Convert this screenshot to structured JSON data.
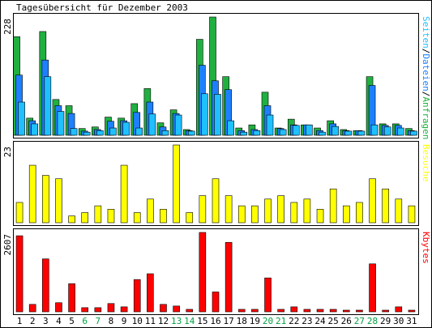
{
  "chart_data": [
    {
      "type": "bar-overlap",
      "title": "Tagesübersicht für Dezember 2003",
      "legend_separator": "/",
      "ylim": [
        0,
        228
      ],
      "yticks": [
        228
      ],
      "series": [
        {
          "name": "Anfragen",
          "color": "#20b040",
          "values": [
            190,
            33,
            200,
            69,
            57,
            13,
            16,
            35,
            33,
            61,
            90,
            24,
            49,
            11,
            185,
            228,
            113,
            14,
            20,
            83,
            14,
            31,
            20,
            14,
            28,
            11,
            9,
            113,
            22,
            22,
            13
          ]
        },
        {
          "name": "Dateien",
          "color": "#1e80ff",
          "values": [
            116,
            28,
            145,
            57,
            42,
            8,
            11,
            27,
            28,
            44,
            64,
            16,
            42,
            9,
            135,
            105,
            88,
            9,
            11,
            57,
            13,
            20,
            20,
            9,
            22,
            9,
            9,
            96,
            19,
            19,
            9
          ]
        },
        {
          "name": "Seiten",
          "color": "#20c0ff",
          "values": [
            64,
            22,
            113,
            46,
            13,
            6,
            9,
            14,
            25,
            14,
            41,
            9,
            39,
            8,
            80,
            79,
            28,
            6,
            9,
            39,
            11,
            19,
            20,
            6,
            17,
            8,
            8,
            20,
            16,
            14,
            8
          ]
        }
      ]
    },
    {
      "type": "bar",
      "y_label": "Besuche",
      "color": "#ffff00",
      "ylim": [
        0,
        23
      ],
      "yticks": [
        23
      ],
      "values": [
        6,
        17,
        14,
        13,
        2,
        3,
        5,
        4,
        17,
        3,
        7,
        4,
        23,
        3,
        8,
        13,
        8,
        5,
        5,
        7,
        8,
        6,
        7,
        4,
        10,
        5,
        6,
        13,
        10,
        7,
        5
      ]
    },
    {
      "type": "bar",
      "y_label": "Kbytes",
      "color": "#ff0000",
      "ylim": [
        0,
        2607
      ],
      "yticks": [
        2607
      ],
      "values": [
        2498,
        244,
        1738,
        299,
        923,
        136,
        136,
        272,
        163,
        1060,
        1250,
        244,
        190,
        81,
        2607,
        652,
        2281,
        81,
        81,
        1113,
        81,
        163,
        81,
        81,
        81,
        54,
        54,
        1575,
        54,
        163,
        54
      ],
      "categories": [
        "1",
        "2",
        "3",
        "4",
        "5",
        "6",
        "7",
        "8",
        "9",
        "10",
        "11",
        "12",
        "13",
        "14",
        "15",
        "16",
        "17",
        "18",
        "19",
        "20",
        "21",
        "22",
        "23",
        "24",
        "25",
        "26",
        "27",
        "28",
        "29",
        "30",
        "31"
      ],
      "category_colors": [
        "#000",
        "#000",
        "#000",
        "#000",
        "#000",
        "#00a040",
        "#00a040",
        "#000",
        "#000",
        "#000",
        "#000",
        "#000",
        "#00a040",
        "#00a040",
        "#000",
        "#000",
        "#000",
        "#000",
        "#000",
        "#00a040",
        "#00a040",
        "#000",
        "#000",
        "#000",
        "#000",
        "#000",
        "#00a040",
        "#00a040",
        "#000",
        "#000",
        "#000"
      ]
    }
  ]
}
